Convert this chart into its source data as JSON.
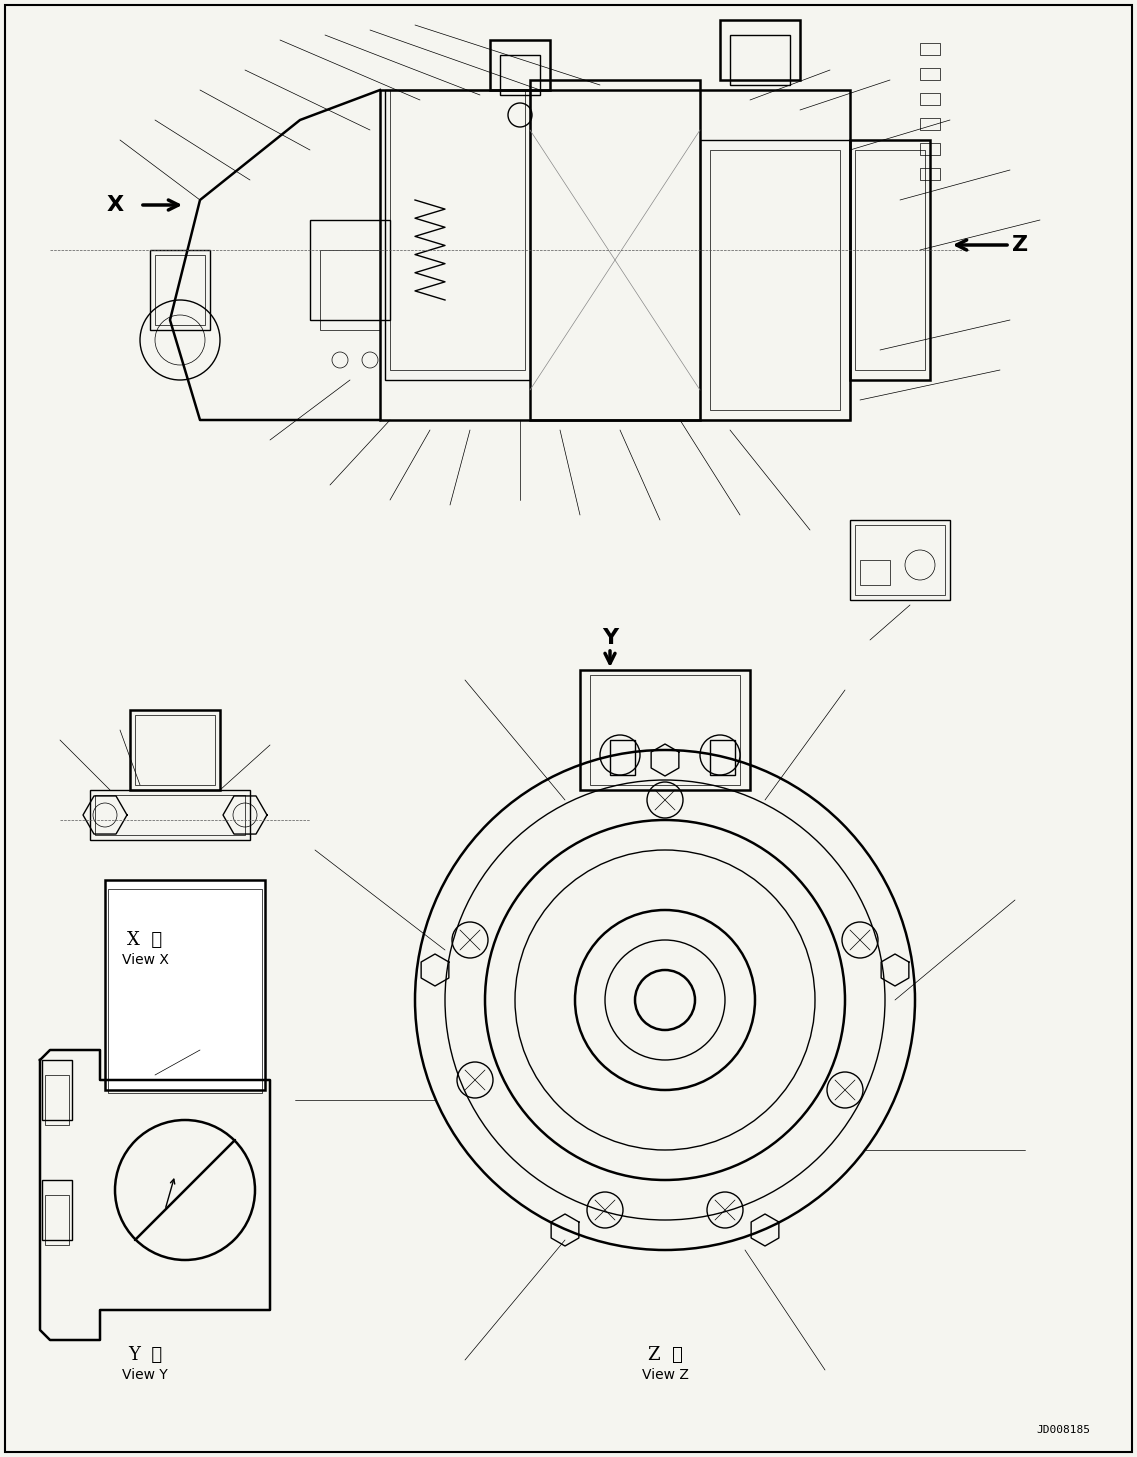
{
  "bg_color": "#f5f5f0",
  "line_color": "#000000",
  "thin_line": 0.5,
  "medium_line": 1.0,
  "thick_line": 1.8,
  "arrow_color": "#000000",
  "label_x": "X",
  "label_y": "Y",
  "label_z": "Z",
  "view_x_label_jp": "X  視",
  "view_x_label_en": "View X",
  "view_y_label_jp": "Y  視",
  "view_y_label_en": "View Y",
  "view_z_label_jp": "Z  視",
  "view_z_label_en": "View Z",
  "drawing_number": "JD008185",
  "font_size_label": 13,
  "font_size_view": 10,
  "font_size_drawing": 8
}
